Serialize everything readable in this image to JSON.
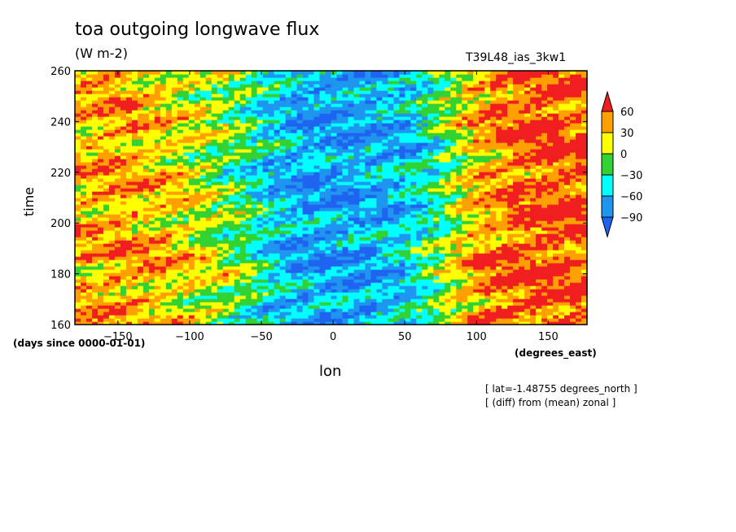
{
  "header": {
    "title": "toa outgoing longwave flux",
    "units": "(W m-2)",
    "run_name": "T39L48_ias_3kw1"
  },
  "footer": {
    "lat_note": "[ lat=-1.48755 degrees_north ]",
    "diff_note": "[ (diff) from (mean) zonal ]"
  },
  "chart_data": {
    "type": "heatmap",
    "title": "toa outgoing longwave flux",
    "subtitle": "(W m-2)",
    "xlabel": "lon",
    "x_units": "(degrees_east)",
    "ylabel": "time",
    "y_units": "(days since 0000-01-01)",
    "xlim": [
      -180,
      177
    ],
    "ylim": [
      160,
      260
    ],
    "x_ticks": [
      -150,
      -100,
      -50,
      0,
      50,
      100,
      150
    ],
    "y_ticks": [
      160,
      180,
      200,
      220,
      240,
      260
    ],
    "colorbar": {
      "levels": [
        -90,
        -60,
        -30,
        0,
        30,
        60
      ],
      "labels": [
        "60",
        "30",
        "0",
        "-30",
        "-60",
        "-90"
      ],
      "colors": [
        "#1e64f0",
        "#1e96f0",
        "#00ffff",
        "#32d232",
        "#ffff00",
        "#ffa000",
        "#f01e1e"
      ]
    },
    "lon_profile": {
      "lon": [
        -180,
        -150,
        -120,
        -100,
        -80,
        -60,
        -40,
        -20,
        0,
        20,
        40,
        60,
        80,
        100,
        120,
        150,
        177
      ],
      "typical_value": [
        35,
        40,
        30,
        15,
        0,
        -25,
        -55,
        -70,
        -75,
        -70,
        -65,
        -45,
        -5,
        35,
        55,
        65,
        60
      ]
    },
    "notes": [
      "[ lat=-1.48755 degrees_north ]",
      "[ (diff) from (mean) zonal ]"
    ]
  }
}
